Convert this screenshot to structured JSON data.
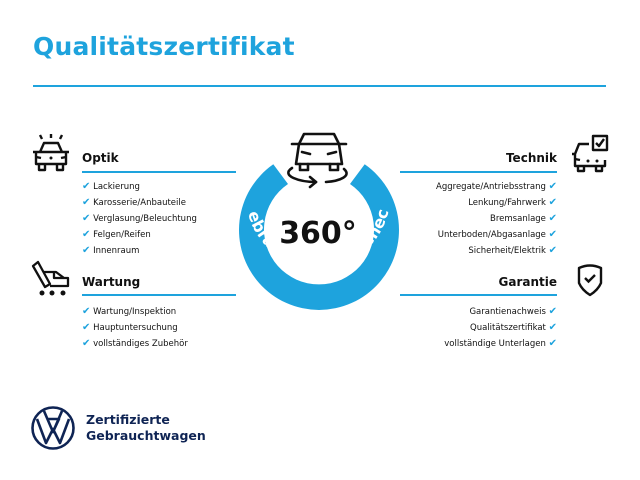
{
  "title": "Qualitätszertifikat",
  "badge": {
    "center": "360°",
    "ring_text": "Gebrauchtwagen-Check"
  },
  "sections": {
    "optik": {
      "heading": "Optik",
      "items": [
        "Lackierung",
        "Karosserie/Anbauteile",
        "Verglasung/Beleuchtung",
        "Felgen/Reifen",
        "Innenraum"
      ]
    },
    "wartung": {
      "heading": "Wartung",
      "items": [
        "Wartung/Inspektion",
        "Hauptuntersuchung",
        "vollständiges Zubehör"
      ]
    },
    "technik": {
      "heading": "Technik",
      "items": [
        "Aggregate/Antriebsstrang",
        "Lenkung/Fahrwerk",
        "Bremsanlage",
        "Unterboden/Abgasanlage",
        "Sicherheit/Elektrik"
      ]
    },
    "garantie": {
      "heading": "Garantie",
      "items": [
        "Garantienachweis",
        "Qualitätszertifikat",
        "vollständige Unterlagen"
      ]
    }
  },
  "logo": {
    "line1": "Zertifizierte",
    "line2": "Gebrauchtwagen"
  },
  "colors": {
    "accent": "#1ea3dd",
    "brand_navy": "#0f2454"
  },
  "check_glyph": "✔"
}
